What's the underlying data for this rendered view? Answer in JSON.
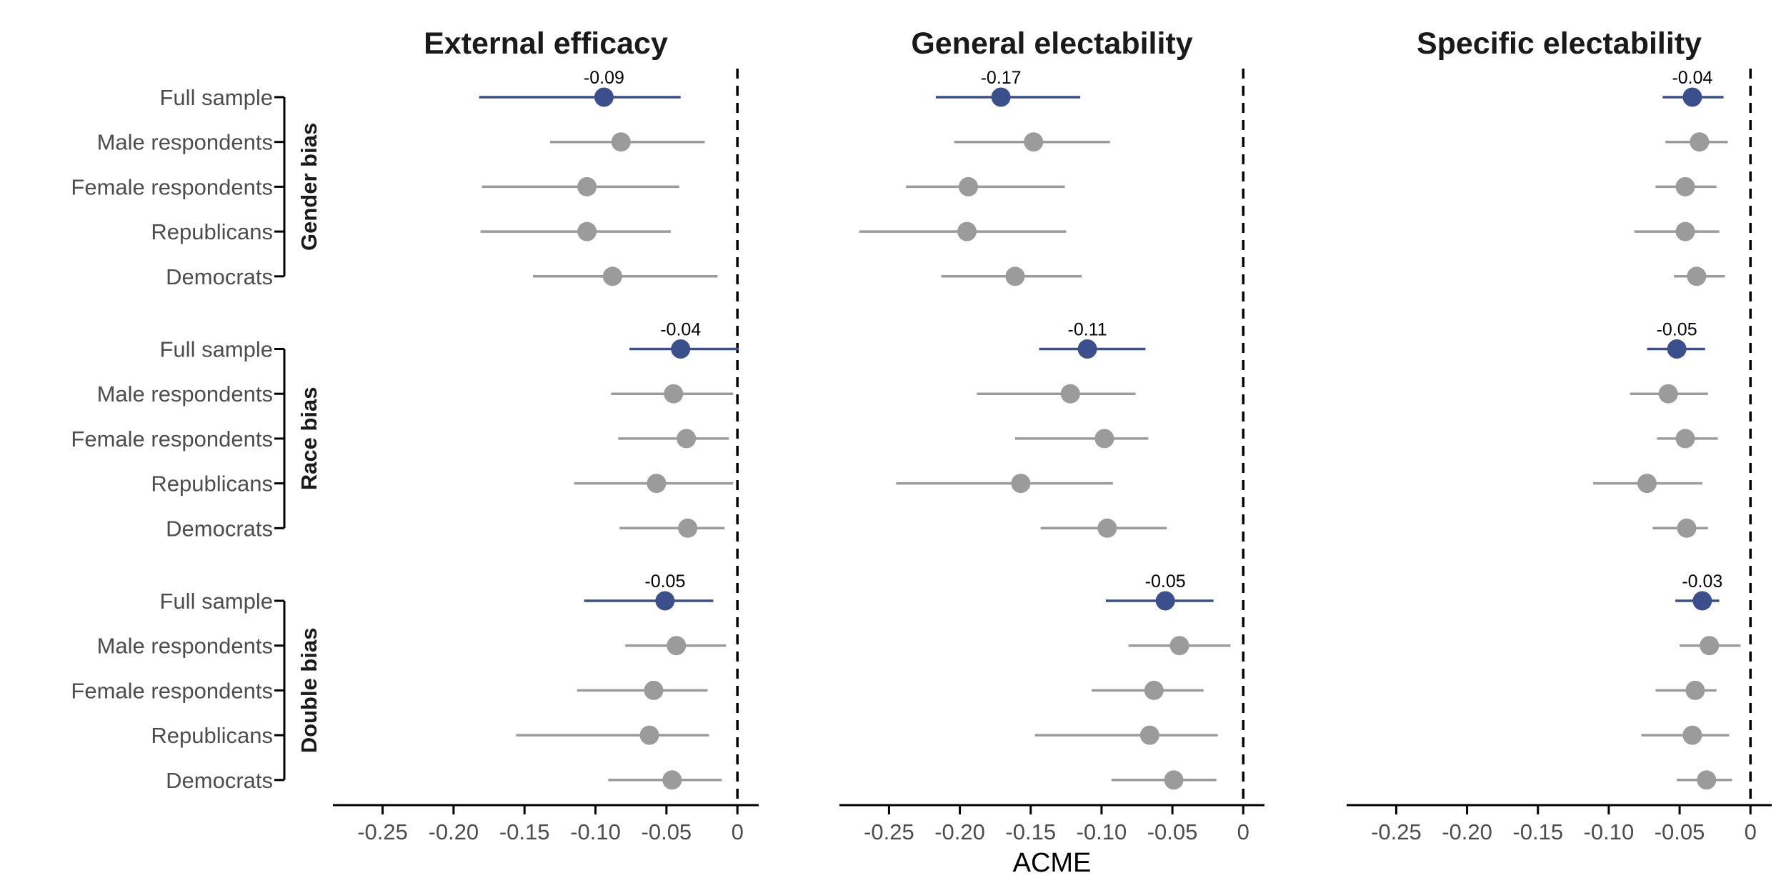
{
  "chart_data": {
    "type": "forest",
    "xlabel": "ACME",
    "xlim": [
      -0.285,
      0.015
    ],
    "xticks": [
      -0.25,
      -0.2,
      -0.15,
      -0.1,
      -0.05,
      0
    ],
    "tick_labels": [
      "-0.25",
      "-0.20",
      "-0.15",
      "-0.10",
      "-0.05",
      "0"
    ],
    "reference_line": 0,
    "colors": {
      "highlight": "#3b4f8c",
      "other": "#9b9b9b",
      "axis": "#000000"
    },
    "groups": [
      {
        "name": "Gender bias",
        "rows": [
          "Full sample",
          "Male respondents",
          "Female respondents",
          "Republicans",
          "Democrats"
        ]
      },
      {
        "name": "Race bias",
        "rows": [
          "Full sample",
          "Male respondents",
          "Female respondents",
          "Republicans",
          "Democrats"
        ]
      },
      {
        "name": "Double bias",
        "rows": [
          "Full sample",
          "Male respondents",
          "Female respondents",
          "Republicans",
          "Democrats"
        ]
      }
    ],
    "panels": [
      {
        "title": "External efficacy",
        "estimates": [
          [
            {
              "est": -0.094,
              "lo": -0.182,
              "hi": -0.04,
              "label": "-0.09"
            },
            {
              "est": -0.082,
              "lo": -0.132,
              "hi": -0.023
            },
            {
              "est": -0.106,
              "lo": -0.18,
              "hi": -0.041
            },
            {
              "est": -0.106,
              "lo": -0.181,
              "hi": -0.047
            },
            {
              "est": -0.088,
              "lo": -0.144,
              "hi": -0.014
            }
          ],
          [
            {
              "est": -0.04,
              "lo": -0.076,
              "hi": 0.001,
              "label": "-0.04"
            },
            {
              "est": -0.045,
              "lo": -0.089,
              "hi": -0.003
            },
            {
              "est": -0.036,
              "lo": -0.084,
              "hi": -0.006
            },
            {
              "est": -0.057,
              "lo": -0.115,
              "hi": -0.003
            },
            {
              "est": -0.035,
              "lo": -0.083,
              "hi": -0.009
            }
          ],
          [
            {
              "est": -0.051,
              "lo": -0.108,
              "hi": -0.017,
              "label": "-0.05"
            },
            {
              "est": -0.043,
              "lo": -0.079,
              "hi": -0.008
            },
            {
              "est": -0.059,
              "lo": -0.113,
              "hi": -0.021
            },
            {
              "est": -0.062,
              "lo": -0.156,
              "hi": -0.02
            },
            {
              "est": -0.046,
              "lo": -0.091,
              "hi": -0.011
            }
          ]
        ]
      },
      {
        "title": "General electability",
        "estimates": [
          [
            {
              "est": -0.171,
              "lo": -0.217,
              "hi": -0.115,
              "label": "-0.17"
            },
            {
              "est": -0.148,
              "lo": -0.204,
              "hi": -0.094
            },
            {
              "est": -0.194,
              "lo": -0.238,
              "hi": -0.126
            },
            {
              "est": -0.195,
              "lo": -0.271,
              "hi": -0.125
            },
            {
              "est": -0.161,
              "lo": -0.213,
              "hi": -0.114
            }
          ],
          [
            {
              "est": -0.11,
              "lo": -0.144,
              "hi": -0.069,
              "label": "-0.11"
            },
            {
              "est": -0.122,
              "lo": -0.188,
              "hi": -0.076
            },
            {
              "est": -0.098,
              "lo": -0.161,
              "hi": -0.067
            },
            {
              "est": -0.157,
              "lo": -0.245,
              "hi": -0.092
            },
            {
              "est": -0.096,
              "lo": -0.143,
              "hi": -0.054
            }
          ],
          [
            {
              "est": -0.055,
              "lo": -0.097,
              "hi": -0.021,
              "label": "-0.05"
            },
            {
              "est": -0.045,
              "lo": -0.081,
              "hi": -0.009
            },
            {
              "est": -0.063,
              "lo": -0.107,
              "hi": -0.028
            },
            {
              "est": -0.066,
              "lo": -0.147,
              "hi": -0.018
            },
            {
              "est": -0.049,
              "lo": -0.093,
              "hi": -0.019
            }
          ]
        ]
      },
      {
        "title": "Specific electability",
        "estimates": [
          [
            {
              "est": -0.041,
              "lo": -0.062,
              "hi": -0.019,
              "label": "-0.04"
            },
            {
              "est": -0.036,
              "lo": -0.06,
              "hi": -0.016
            },
            {
              "est": -0.046,
              "lo": -0.067,
              "hi": -0.024
            },
            {
              "est": -0.046,
              "lo": -0.082,
              "hi": -0.022
            },
            {
              "est": -0.038,
              "lo": -0.054,
              "hi": -0.018
            }
          ],
          [
            {
              "est": -0.052,
              "lo": -0.073,
              "hi": -0.032,
              "label": "-0.05"
            },
            {
              "est": -0.058,
              "lo": -0.085,
              "hi": -0.03
            },
            {
              "est": -0.046,
              "lo": -0.066,
              "hi": -0.023
            },
            {
              "est": -0.073,
              "lo": -0.111,
              "hi": -0.034
            },
            {
              "est": -0.045,
              "lo": -0.069,
              "hi": -0.03
            }
          ],
          [
            {
              "est": -0.034,
              "lo": -0.053,
              "hi": -0.022,
              "label": "-0.03"
            },
            {
              "est": -0.029,
              "lo": -0.05,
              "hi": -0.007
            },
            {
              "est": -0.039,
              "lo": -0.067,
              "hi": -0.024
            },
            {
              "est": -0.041,
              "lo": -0.077,
              "hi": -0.015
            },
            {
              "est": -0.031,
              "lo": -0.052,
              "hi": -0.013
            }
          ]
        ]
      }
    ]
  }
}
